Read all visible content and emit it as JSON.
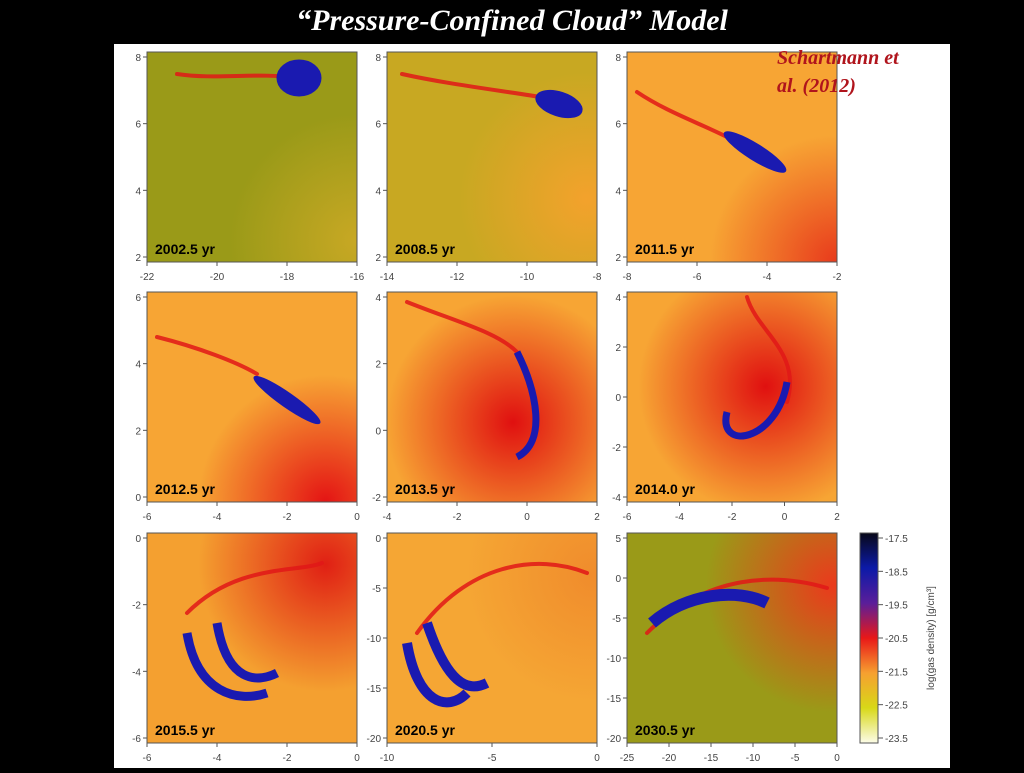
{
  "slide": {
    "title": "“Pressure-Confined Cloud” Model"
  },
  "citation": "Schartmann et\nal. (2012)",
  "colorbar": {
    "label": "log(gas density) [g/cm³]",
    "ticks": [
      "-17.5",
      "-18.5",
      "-19.5",
      "-20.5",
      "-21.5",
      "-22.5",
      "-23.5"
    ],
    "colors": [
      "#080818",
      "#0c1aa8",
      "#5a1e9a",
      "#e81818",
      "#f6a030",
      "#d8d818",
      "#fcfce8"
    ]
  },
  "chart_data": [
    {
      "type": "heatmap",
      "label": "2002.5 yr",
      "xticks": [
        "-22",
        "-20",
        "-18",
        "-16"
      ],
      "yticks": [
        "8",
        "6",
        "4",
        "2"
      ],
      "bg": [
        "#c8a824",
        "#9a9a18"
      ],
      "bg_center": [
        1.0,
        0.9
      ]
    },
    {
      "type": "heatmap",
      "label": "2008.5 yr",
      "xticks": [
        "-14",
        "-12",
        "-10",
        "-8"
      ],
      "yticks": [
        "8",
        "6",
        "4",
        "2"
      ],
      "bg": [
        "#f3a22c",
        "#c8a822"
      ],
      "bg_center": [
        0.95,
        0.7
      ]
    },
    {
      "type": "heatmap",
      "label": "2011.5 yr",
      "xticks": [
        "-8",
        "-6",
        "-4",
        "-2"
      ],
      "yticks": [
        "8",
        "6",
        "4",
        "2"
      ],
      "bg": [
        "#e83a1c",
        "#f7a534"
      ],
      "bg_center": [
        1.0,
        1.0
      ]
    },
    {
      "type": "heatmap",
      "label": "2012.5 yr",
      "xticks": [
        "-6",
        "-4",
        "-2",
        "0"
      ],
      "yticks": [
        "6",
        "4",
        "2",
        "0"
      ],
      "bg": [
        "#e41414",
        "#f7a534"
      ],
      "bg_center": [
        0.85,
        1.0
      ]
    },
    {
      "type": "heatmap",
      "label": "2013.5 yr",
      "xticks": [
        "-4",
        "-2",
        "0",
        "2"
      ],
      "yticks": [
        "4",
        "2",
        "0",
        "-2"
      ],
      "bg": [
        "#e01010",
        "#f7a534"
      ],
      "bg_center": [
        0.6,
        0.62
      ]
    },
    {
      "type": "heatmap",
      "label": "2014.0 yr",
      "xticks": [
        "-6",
        "-4",
        "-2",
        "0",
        "2"
      ],
      "yticks": [
        "4",
        "2",
        "0",
        "-2",
        "-4"
      ],
      "bg": [
        "#e01010",
        "#f7a534"
      ],
      "bg_center": [
        0.66,
        0.45
      ]
    },
    {
      "type": "heatmap",
      "label": "2015.5 yr",
      "xticks": [
        "-6",
        "-4",
        "-2",
        "0"
      ],
      "yticks": [
        "0",
        "-2",
        "-4",
        "-6"
      ],
      "bg": [
        "#e02014",
        "#f4a030"
      ],
      "bg_center": [
        0.85,
        0.15
      ]
    },
    {
      "type": "heatmap",
      "label": "2020.5 yr",
      "xticks": [
        "-10",
        "-5",
        "0"
      ],
      "yticks": [
        "0",
        "-5",
        "-10",
        "-15",
        "-20"
      ],
      "bg": [
        "#f08c2c",
        "#f5a634"
      ],
      "bg_center": [
        0.98,
        0.2
      ]
    },
    {
      "type": "heatmap",
      "label": "2030.5 yr",
      "xticks": [
        "-25",
        "-20",
        "-15",
        "-10",
        "-5",
        "0"
      ],
      "yticks": [
        "5",
        "0",
        "-5",
        "-10",
        "-15",
        "-20"
      ],
      "bg": [
        "#ea3a1c",
        "#9a9a18"
      ],
      "bg_center": [
        0.98,
        0.25
      ]
    }
  ]
}
